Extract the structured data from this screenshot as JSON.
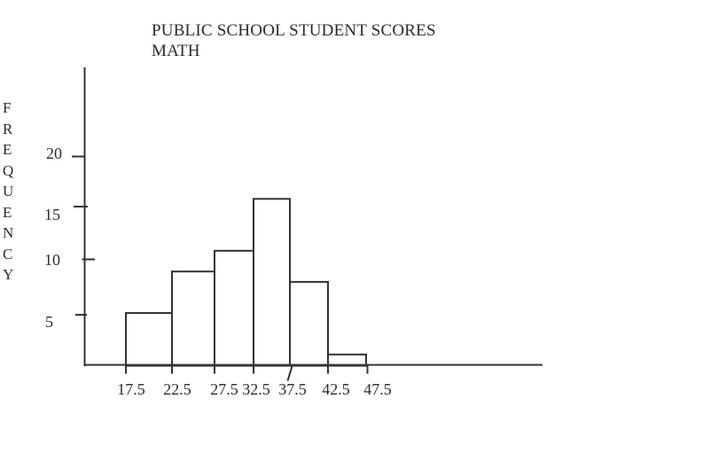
{
  "header": {
    "line1": "PUBLIC SCHOOL STUDENT SCORES",
    "line2": "MATH"
  },
  "chart_data": {
    "type": "bar",
    "subtype": "histogram",
    "title": "PUBLIC SCHOOL STUDENT SCORES MATH",
    "xlabel": "",
    "ylabel": "FREQUENCY",
    "bin_edges": [
      17.5,
      22.5,
      27.5,
      32.5,
      37.5,
      42.5,
      47.5
    ],
    "x_tick_labels": [
      "17.5",
      "22.5",
      "27.5",
      "32.5",
      "37.5",
      "42.5",
      "47.5"
    ],
    "values": [
      5,
      9,
      11,
      16,
      8,
      1
    ],
    "y_ticks": [
      20,
      15,
      10,
      5
    ],
    "ylim": [
      0,
      28
    ],
    "grid": false,
    "legend": false,
    "bar_fill": "#ffffff",
    "line_color": "#333333",
    "ink_color": "#272b33"
  }
}
